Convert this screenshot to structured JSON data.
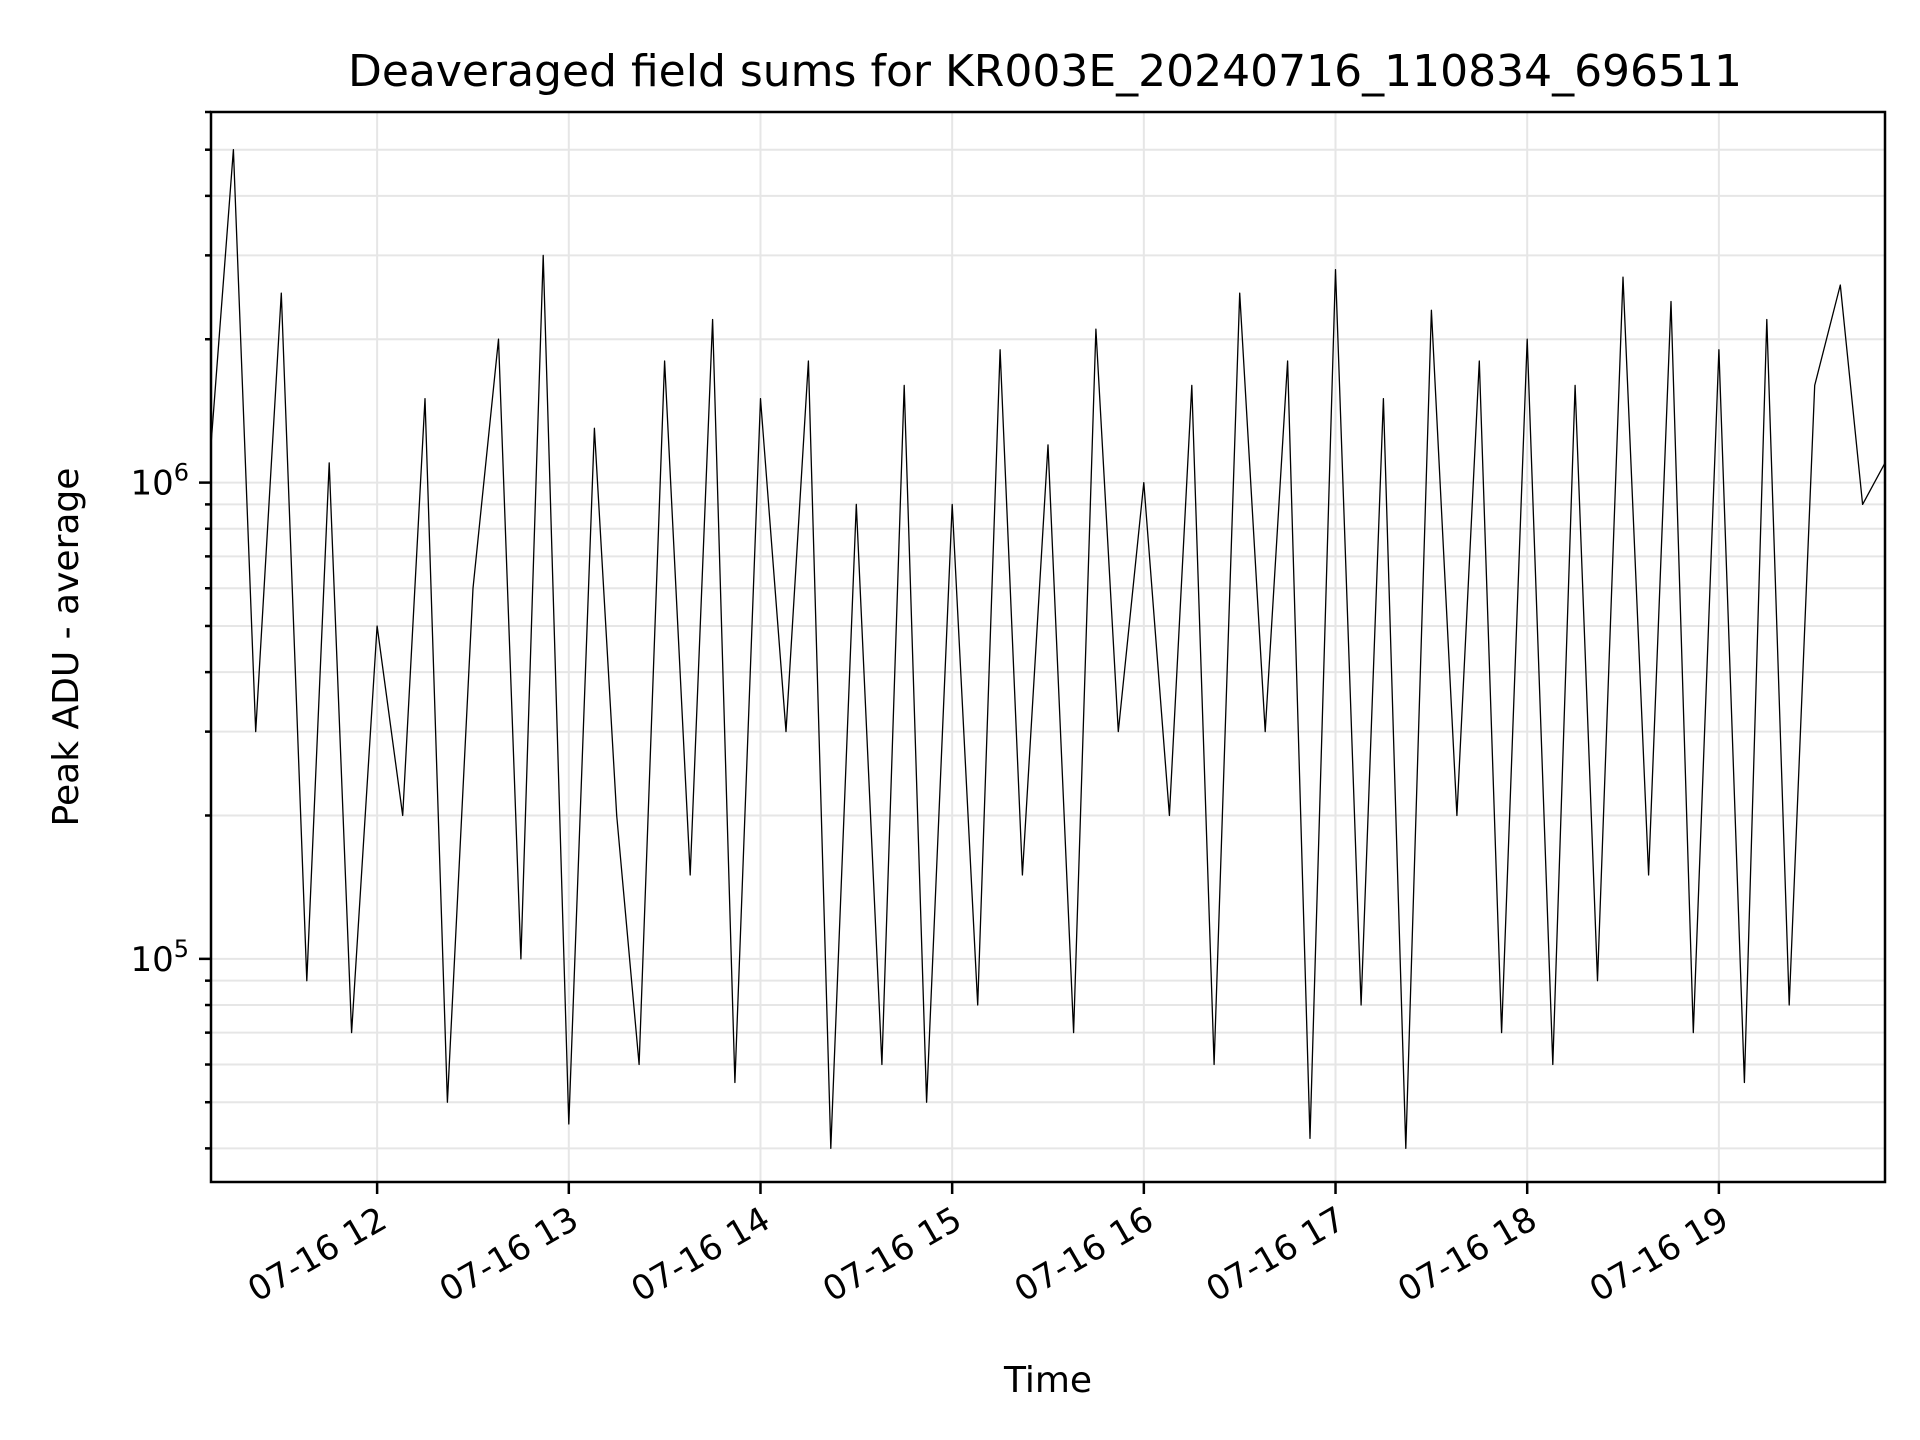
{
  "chart_data": {
    "type": "line",
    "title": "Deaveraged field sums for KR003E_20240716_110834_696511",
    "xlabel": "Time",
    "ylabel": "Peak ADU - average",
    "y_scale": "log",
    "ylim": [
      34000,
      6000000
    ],
    "xlim": [
      "2024-07-16T11:08",
      "2024-07-16T19:52"
    ],
    "grid": true,
    "x_ticks": [
      "07-16 12",
      "07-16 13",
      "07-16 14",
      "07-16 15",
      "07-16 16",
      "07-16 17",
      "07-16 18",
      "07-16 19"
    ],
    "x_tick_times": [
      "2024-07-16T12:00",
      "2024-07-16T13:00",
      "2024-07-16T14:00",
      "2024-07-16T15:00",
      "2024-07-16T16:00",
      "2024-07-16T17:00",
      "2024-07-16T18:00",
      "2024-07-16T19:00"
    ],
    "y_ticks": [
      {
        "base": "10",
        "exp": "5",
        "value": 100000
      },
      {
        "base": "10",
        "exp": "6",
        "value": 1000000
      }
    ],
    "series": [
      {
        "color": "#000000",
        "x": [
          "2024-07-16T11:08",
          "2024-07-16T11:15",
          "2024-07-16T11:22",
          "2024-07-16T11:30",
          "2024-07-16T11:38",
          "2024-07-16T11:45",
          "2024-07-16T11:52",
          "2024-07-16T12:00",
          "2024-07-16T12:08",
          "2024-07-16T12:15",
          "2024-07-16T12:22",
          "2024-07-16T12:30",
          "2024-07-16T12:38",
          "2024-07-16T12:45",
          "2024-07-16T12:52",
          "2024-07-16T13:00",
          "2024-07-16T13:08",
          "2024-07-16T13:15",
          "2024-07-16T13:22",
          "2024-07-16T13:30",
          "2024-07-16T13:38",
          "2024-07-16T13:45",
          "2024-07-16T13:52",
          "2024-07-16T14:00",
          "2024-07-16T14:08",
          "2024-07-16T14:15",
          "2024-07-16T14:22",
          "2024-07-16T14:30",
          "2024-07-16T14:38",
          "2024-07-16T14:45",
          "2024-07-16T14:52",
          "2024-07-16T15:00",
          "2024-07-16T15:08",
          "2024-07-16T15:15",
          "2024-07-16T15:22",
          "2024-07-16T15:30",
          "2024-07-16T15:38",
          "2024-07-16T15:45",
          "2024-07-16T15:52",
          "2024-07-16T16:00",
          "2024-07-16T16:08",
          "2024-07-16T16:15",
          "2024-07-16T16:22",
          "2024-07-16T16:30",
          "2024-07-16T16:38",
          "2024-07-16T16:45",
          "2024-07-16T16:52",
          "2024-07-16T17:00",
          "2024-07-16T17:08",
          "2024-07-16T17:15",
          "2024-07-16T17:22",
          "2024-07-16T17:30",
          "2024-07-16T17:38",
          "2024-07-16T17:45",
          "2024-07-16T17:52",
          "2024-07-16T18:00",
          "2024-07-16T18:08",
          "2024-07-16T18:15",
          "2024-07-16T18:22",
          "2024-07-16T18:30",
          "2024-07-16T18:38",
          "2024-07-16T18:45",
          "2024-07-16T18:52",
          "2024-07-16T19:00",
          "2024-07-16T19:08",
          "2024-07-16T19:15",
          "2024-07-16T19:22",
          "2024-07-16T19:30",
          "2024-07-16T19:38",
          "2024-07-16T19:45",
          "2024-07-16T19:52"
        ],
        "y": [
          1200000,
          5000000,
          300000,
          2500000,
          90000,
          1100000,
          70000,
          500000,
          200000,
          1500000,
          50000,
          600000,
          2000000,
          100000,
          3000000,
          45000,
          1300000,
          200000,
          60000,
          1800000,
          150000,
          2200000,
          55000,
          1500000,
          300000,
          1800000,
          40000,
          900000,
          60000,
          1600000,
          50000,
          900000,
          80000,
          1900000,
          150000,
          1200000,
          70000,
          2100000,
          300000,
          1000000,
          200000,
          1600000,
          60000,
          2500000,
          300000,
          1800000,
          42000,
          2800000,
          80000,
          1500000,
          40000,
          2300000,
          200000,
          1800000,
          70000,
          2000000,
          60000,
          1600000,
          90000,
          2700000,
          150000,
          2400000,
          70000,
          1900000,
          55000,
          2200000,
          80000,
          1600000,
          2600000,
          900000,
          1100000
        ]
      }
    ]
  }
}
